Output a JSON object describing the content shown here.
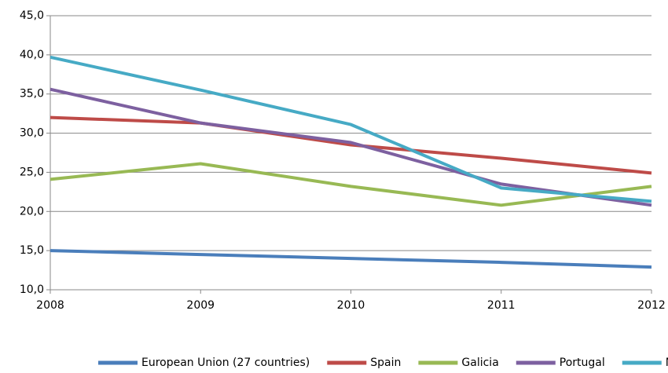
{
  "chart_data": {
    "type": "line",
    "categories": [
      "2008",
      "2009",
      "2010",
      "2011",
      "2012"
    ],
    "series": [
      {
        "name": "European Union (27 countries)",
        "color": "#4a7ebb",
        "values": [
          15.0,
          14.5,
          14.0,
          13.5,
          12.9
        ]
      },
      {
        "name": "Spain",
        "color": "#be4b48",
        "values": [
          32.0,
          31.3,
          28.5,
          26.8,
          24.9
        ]
      },
      {
        "name": "Galicia",
        "color": "#98b954",
        "values": [
          24.1,
          26.1,
          23.2,
          20.8,
          23.2
        ]
      },
      {
        "name": "Portugal",
        "color": "#7d60a0",
        "values": [
          35.6,
          31.3,
          28.8,
          23.5,
          20.8
        ]
      },
      {
        "name": "Norte",
        "color": "#46aac5",
        "values": [
          39.7,
          35.5,
          31.1,
          23.0,
          21.3
        ]
      }
    ],
    "ylim": [
      10,
      45
    ],
    "yticks": [
      {
        "value": 10,
        "label": "10,0"
      },
      {
        "value": 15,
        "label": "15,0"
      },
      {
        "value": 20,
        "label": "20,0"
      },
      {
        "value": 25,
        "label": "25,0"
      },
      {
        "value": 30,
        "label": "30,0"
      },
      {
        "value": 35,
        "label": "35,0"
      },
      {
        "value": 40,
        "label": "40,0"
      },
      {
        "value": 45,
        "label": "45,0"
      }
    ],
    "grid": true,
    "legend": "bottom"
  }
}
